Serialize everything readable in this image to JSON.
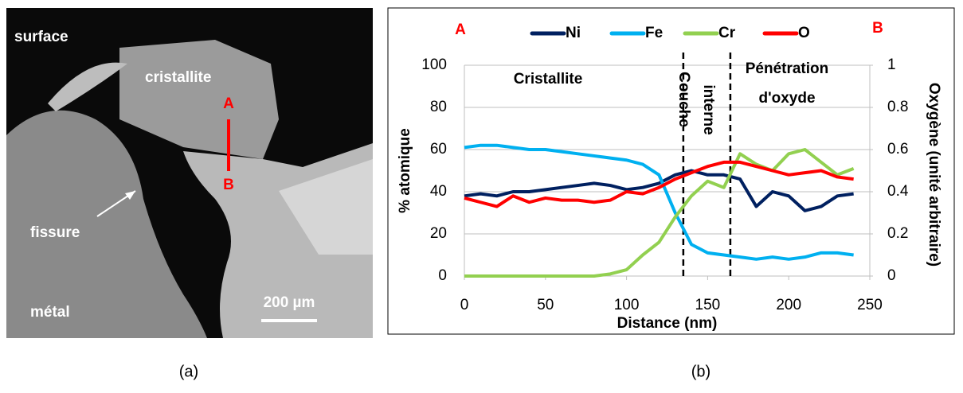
{
  "micrograph": {
    "labels": [
      "surface",
      "cristallite",
      "fissure",
      "métal",
      "A",
      "B"
    ],
    "scale_bar": "200 µm"
  },
  "captions": [
    "(a)",
    "(b)"
  ],
  "chart_data": {
    "type": "line",
    "xlabel": "Distance (nm)",
    "ylabel": "% atomique",
    "y2label": "Oxygène (unité arbitraire)",
    "marker_start": "A",
    "marker_end": "B",
    "annotations": [
      "Cristallite",
      "Couche",
      "interne",
      "Pénétration",
      "d'oxyde"
    ],
    "dashed_lines": [
      135,
      164
    ],
    "x": [
      0,
      10,
      20,
      30,
      40,
      50,
      60,
      70,
      80,
      90,
      100,
      110,
      120,
      130,
      140,
      150,
      160,
      170,
      180,
      190,
      200,
      210,
      220,
      230,
      240
    ],
    "series": [
      {
        "name": "Ni",
        "color": "#002060",
        "values": [
          38,
          39,
          38,
          40,
          40,
          41,
          42,
          43,
          44,
          43,
          41,
          42,
          44,
          48,
          50,
          48,
          48,
          46,
          33,
          40,
          38,
          31,
          33,
          38,
          39
        ]
      },
      {
        "name": "Fe",
        "color": "#00b0f0",
        "values": [
          61,
          62,
          62,
          61,
          60,
          60,
          59,
          58,
          57,
          56,
          55,
          53,
          48,
          30,
          15,
          11,
          10,
          9,
          8,
          9,
          8,
          9,
          11,
          11,
          10
        ]
      },
      {
        "name": "Cr",
        "color": "#92d050",
        "values": [
          0,
          0,
          0,
          0,
          0,
          0,
          0,
          0,
          0,
          1,
          3,
          10,
          16,
          28,
          38,
          45,
          42,
          58,
          53,
          50,
          58,
          60,
          54,
          48,
          51
        ]
      },
      {
        "name": "O",
        "color": "#ff0000",
        "axis": "y2",
        "values": [
          0.37,
          0.35,
          0.33,
          0.38,
          0.35,
          0.37,
          0.36,
          0.36,
          0.35,
          0.36,
          0.4,
          0.39,
          0.42,
          0.46,
          0.49,
          0.52,
          0.54,
          0.54,
          0.52,
          0.5,
          0.48,
          0.49,
          0.5,
          0.47,
          0.46
        ]
      }
    ],
    "xlim": [
      0,
      250
    ],
    "xticks": [
      0,
      50,
      100,
      150,
      200,
      250
    ],
    "ylim": [
      0,
      100
    ],
    "yticks": [
      0,
      20,
      40,
      60,
      80,
      100
    ],
    "y2lim": [
      0,
      1
    ],
    "y2ticks": [
      0,
      0.2,
      0.4,
      0.6,
      0.8,
      1
    ],
    "grid": true,
    "legend": "top"
  }
}
